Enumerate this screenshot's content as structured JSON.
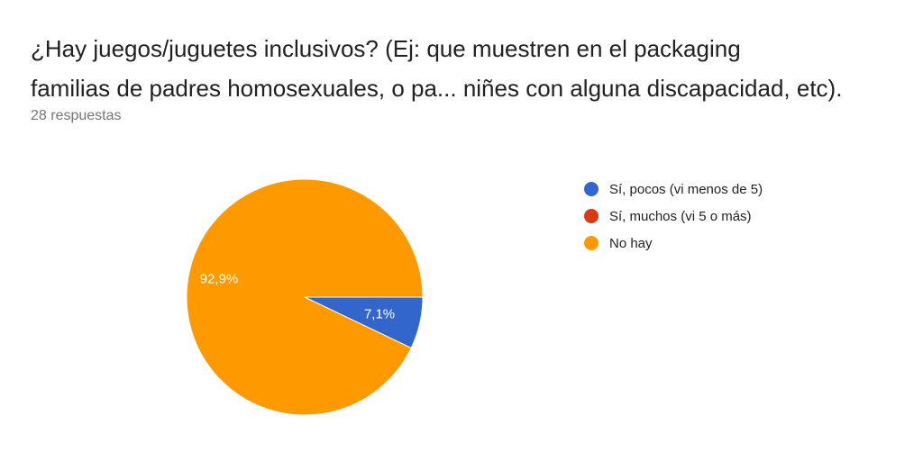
{
  "question": {
    "title_line1": "¿Hay juegos/juguetes inclusivos? (Ej: que muestren en el packaging",
    "title_line2": "familias de padres homosexuales, o pa... niñes con alguna discapacidad, etc).",
    "responses": "28 respuestas"
  },
  "chart_data": {
    "type": "pie",
    "categories": [
      "Sí, pocos (vi menos de 5)",
      "Sí, muchos (vi 5 o más)",
      "No hay"
    ],
    "values": [
      7.1,
      0,
      92.9
    ],
    "labels": [
      "7,1%",
      "",
      "92,9%"
    ],
    "colors": [
      "#3366cc",
      "#dc3912",
      "#ff9900"
    ],
    "legend_position": "right"
  }
}
